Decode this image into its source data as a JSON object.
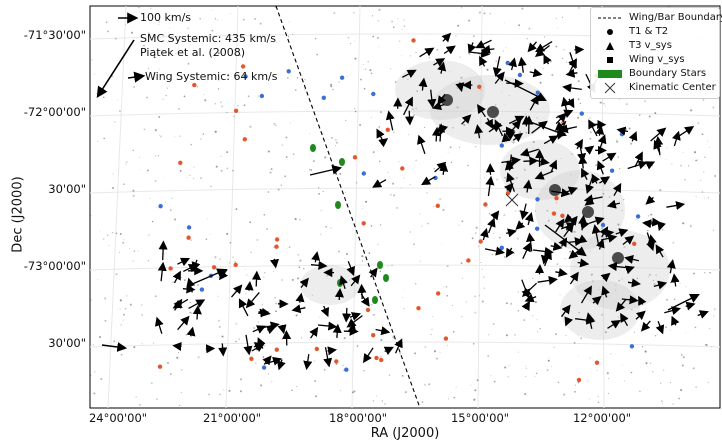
{
  "axes": {
    "xlabel": "RA (J2000)",
    "ylabel": "Dec (J2000)",
    "xticks": [
      {
        "ra_hours": 1.6,
        "label": "24°00'00\""
      },
      {
        "ra_hours": 1.4,
        "label": "21°00'00\""
      },
      {
        "ra_hours": 1.2,
        "label": "18°00'00\""
      },
      {
        "ra_hours": 1.0,
        "label": "15°00'00\""
      },
      {
        "ra_hours": 0.8,
        "label": "12°00'00\""
      }
    ],
    "yticks": [
      {
        "dec": -71.5,
        "label": "-71°30'00\""
      },
      {
        "dec": -72.0,
        "label": "-72°00'00\""
      },
      {
        "dec": -72.5,
        "label": "30'00\""
      },
      {
        "dec": -73.0,
        "label": "-73°00'00\""
      },
      {
        "dec": -73.5,
        "label": "30'00\""
      }
    ]
  },
  "annotations": {
    "scale_label": "100 km/s",
    "smc_systemic": "SMC Systemic: 435 km/s",
    "smc_ref": "Piątek et al. (2008)",
    "wing_systemic": "Wing Systemic: 64 km/s"
  },
  "legend": {
    "boundary": "Wing/Bar Boundary",
    "t1t2": "T1 & T2",
    "t3": "T3 v_sys",
    "wing": "Wing v_sys",
    "boundary_stars": "Boundary Stars",
    "center": "Kinematic Center"
  },
  "colors": {
    "arrow": "#000000",
    "boundary_stars": "#1e8a1e",
    "red_star": "#e4572e",
    "blue_star": "#3b6fd4",
    "background_stars": "#7a7a7a"
  }
}
